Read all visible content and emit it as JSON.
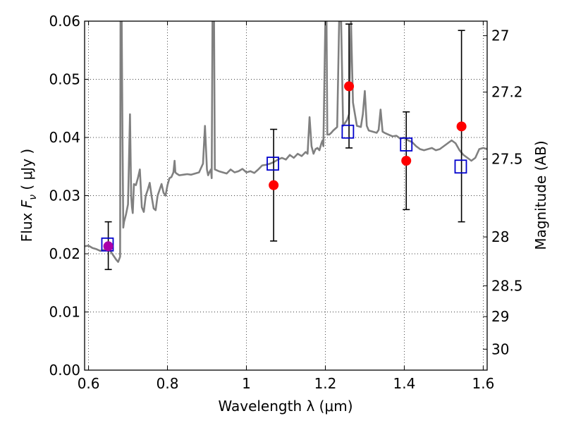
{
  "chart_data": {
    "type": "scatter",
    "xlabel": "Wavelength  λ (μm)",
    "ylabel": {
      "prefix": "Flux  ",
      "symbol": "F",
      "sub": "ν",
      "suffix": "  (  μJy  )"
    },
    "y2label": "Magnitude (AB)",
    "xlim": [
      0.59,
      1.61
    ],
    "ylim": [
      0.0,
      0.06
    ],
    "grid": true,
    "x_ticks": [
      {
        "value": 0.6,
        "label": "0.6"
      },
      {
        "value": 0.8,
        "label": "0.8"
      },
      {
        "value": 1.0,
        "label": "1"
      },
      {
        "value": 1.2,
        "label": "1.2"
      },
      {
        "value": 1.4,
        "label": "1.4"
      },
      {
        "value": 1.6,
        "label": "1.6"
      }
    ],
    "y_ticks": [
      {
        "value": 0.0,
        "label": "0.00"
      },
      {
        "value": 0.01,
        "label": "0.01"
      },
      {
        "value": 0.02,
        "label": "0.02"
      },
      {
        "value": 0.03,
        "label": "0.03"
      },
      {
        "value": 0.04,
        "label": "0.04"
      },
      {
        "value": 0.05,
        "label": "0.05"
      },
      {
        "value": 0.06,
        "label": "0.06"
      }
    ],
    "y2_ticks": [
      {
        "flux": 0.0575,
        "label": "27"
      },
      {
        "flux": 0.0478,
        "label": "27.2"
      },
      {
        "flux": 0.0363,
        "label": "27.5"
      },
      {
        "flux": 0.0229,
        "label": "28"
      },
      {
        "flux": 0.0145,
        "label": "28.5"
      },
      {
        "flux": 0.0092,
        "label": "29"
      },
      {
        "flux": 0.0036,
        "label": "30"
      }
    ],
    "colors": {
      "spectrum": "#808080",
      "observed": "#ff0000",
      "observed_first": "#aa00aa",
      "model": "#0000cc",
      "errorbar": "#000000"
    },
    "spectrum": {
      "x": [
        0.59,
        0.6,
        0.61,
        0.62,
        0.63,
        0.64,
        0.65,
        0.66,
        0.665,
        0.67,
        0.675,
        0.68,
        0.681,
        0.682,
        0.683,
        0.684,
        0.686,
        0.688,
        0.69,
        0.695,
        0.7,
        0.705,
        0.708,
        0.71,
        0.712,
        0.715,
        0.72,
        0.725,
        0.73,
        0.735,
        0.74,
        0.745,
        0.75,
        0.755,
        0.76,
        0.765,
        0.77,
        0.775,
        0.78,
        0.785,
        0.79,
        0.795,
        0.8,
        0.805,
        0.81,
        0.815,
        0.818,
        0.82,
        0.823,
        0.83,
        0.84,
        0.85,
        0.86,
        0.87,
        0.88,
        0.89,
        0.895,
        0.9,
        0.903,
        0.906,
        0.91,
        0.912,
        0.914,
        0.916,
        0.918,
        0.92,
        0.93,
        0.94,
        0.95,
        0.96,
        0.97,
        0.98,
        0.99,
        1.0,
        1.01,
        1.02,
        1.03,
        1.04,
        1.05,
        1.06,
        1.07,
        1.08,
        1.09,
        1.1,
        1.11,
        1.12,
        1.13,
        1.14,
        1.15,
        1.155,
        1.16,
        1.165,
        1.17,
        1.175,
        1.18,
        1.185,
        1.19,
        1.193,
        1.195,
        1.2,
        1.203,
        1.205,
        1.21,
        1.215,
        1.22,
        1.225,
        1.23,
        1.235,
        1.24,
        1.245,
        1.25,
        1.255,
        1.26,
        1.265,
        1.27,
        1.28,
        1.29,
        1.295,
        1.3,
        1.305,
        1.31,
        1.32,
        1.33,
        1.335,
        1.34,
        1.345,
        1.35,
        1.36,
        1.37,
        1.38,
        1.39,
        1.4,
        1.41,
        1.42,
        1.43,
        1.44,
        1.45,
        1.46,
        1.47,
        1.48,
        1.49,
        1.5,
        1.51,
        1.52,
        1.53,
        1.54,
        1.55,
        1.56,
        1.57,
        1.58,
        1.59,
        1.6,
        1.61
      ],
      "y": [
        0.0213,
        0.0214,
        0.021,
        0.0208,
        0.0205,
        0.0207,
        0.021,
        0.02,
        0.0195,
        0.019,
        0.0186,
        0.0195,
        0.06,
        0.06,
        0.06,
        0.06,
        0.04,
        0.0245,
        0.0255,
        0.0268,
        0.0285,
        0.044,
        0.03,
        0.028,
        0.027,
        0.032,
        0.0318,
        0.033,
        0.0345,
        0.028,
        0.0272,
        0.03,
        0.031,
        0.0322,
        0.0298,
        0.0278,
        0.0275,
        0.03,
        0.031,
        0.032,
        0.0305,
        0.03,
        0.0318,
        0.033,
        0.0332,
        0.034,
        0.036,
        0.034,
        0.0338,
        0.0335,
        0.0336,
        0.0337,
        0.0336,
        0.0338,
        0.034,
        0.0355,
        0.042,
        0.0345,
        0.0335,
        0.034,
        0.0345,
        0.033,
        0.06,
        0.06,
        0.06,
        0.0345,
        0.0342,
        0.034,
        0.0338,
        0.0345,
        0.034,
        0.0342,
        0.0346,
        0.034,
        0.0342,
        0.0339,
        0.0345,
        0.0352,
        0.0353,
        0.0355,
        0.0358,
        0.0362,
        0.0365,
        0.0362,
        0.037,
        0.0365,
        0.0372,
        0.0368,
        0.0375,
        0.0372,
        0.0435,
        0.0385,
        0.0372,
        0.038,
        0.0382,
        0.0378,
        0.039,
        0.0395,
        0.0385,
        0.06,
        0.06,
        0.0405,
        0.0405,
        0.0408,
        0.0412,
        0.0415,
        0.0418,
        0.06,
        0.06,
        0.042,
        0.0425,
        0.043,
        0.044,
        0.06,
        0.046,
        0.042,
        0.0418,
        0.044,
        0.048,
        0.042,
        0.0412,
        0.041,
        0.0408,
        0.0413,
        0.0448,
        0.041,
        0.0408,
        0.0405,
        0.0402,
        0.0403,
        0.0398,
        0.04,
        0.0395,
        0.0392,
        0.0385,
        0.038,
        0.0378,
        0.038,
        0.0382,
        0.0378,
        0.038,
        0.0385,
        0.039,
        0.0395,
        0.039,
        0.0378,
        0.037,
        0.0365,
        0.036,
        0.0365,
        0.038,
        0.0382,
        0.038
      ]
    },
    "series": [
      {
        "marker": "filled-circle",
        "x": [
          0.65,
          1.069,
          1.26,
          1.405,
          1.545
        ],
        "y": [
          0.0213,
          0.0318,
          0.0488,
          0.036,
          0.0419
        ]
      },
      {
        "marker": "open-square",
        "x": [
          0.648,
          1.067,
          1.257,
          1.405,
          1.543
        ],
        "y": [
          0.0216,
          0.0355,
          0.041,
          0.0388,
          0.035
        ]
      }
    ],
    "errorbars": {
      "x": [
        0.65,
        1.069,
        1.26,
        1.405,
        1.545
      ],
      "low": [
        0.0173,
        0.0222,
        0.0382,
        0.0276,
        0.0255
      ],
      "high": [
        0.0255,
        0.0414,
        0.0595,
        0.0444,
        0.0584
      ]
    }
  }
}
